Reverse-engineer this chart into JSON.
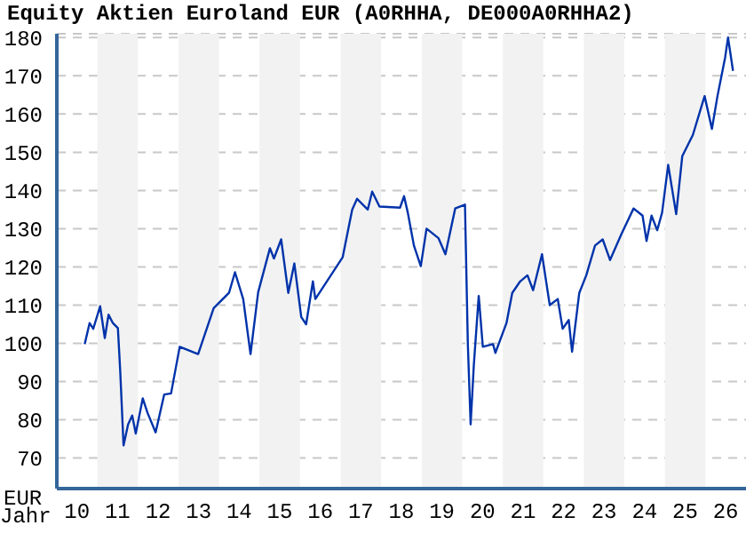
{
  "chart_data": {
    "type": "line",
    "title": "Equity Aktien Euroland EUR (A0RHHA, DE000A0RHHA2)",
    "xlabel": "Jahr",
    "ylabel": "EUR",
    "x": [
      "2010-09-09",
      "2010-10-23",
      "2010-11-25",
      "2011-01-26",
      "2011-03-09",
      "2011-04-12",
      "2011-05-21",
      "2011-07-05",
      "2011-07-26",
      "2011-08-25",
      "2011-10-05",
      "2011-11-11",
      "2011-12-13",
      "2012-02-14",
      "2012-03-27",
      "2012-06-09",
      "2012-08-25",
      "2012-10-26",
      "2013-01-12",
      "2013-06-27",
      "2013-11-14",
      "2014-04-01",
      "2014-05-25",
      "2014-08-07",
      "2014-10-12",
      "2014-12-20",
      "2015-04-05",
      "2015-05-11",
      "2015-07-15",
      "2015-09-17",
      "2015-11-11",
      "2016-01-12",
      "2016-02-25",
      "2016-04-26",
      "2016-05-18",
      "2017-01-19",
      "2017-04-15",
      "2017-05-29",
      "2017-09-02",
      "2017-10-12",
      "2017-12-17",
      "2018-06-20",
      "2018-07-26",
      "2018-08-29",
      "2018-10-23",
      "2018-12-24",
      "2019-02-14",
      "2019-06-02",
      "2019-08-03",
      "2019-10-30",
      "2020-01-26",
      "2020-02-21",
      "2020-03-17",
      "2020-04-15",
      "2020-05-29",
      "2020-07-05",
      "2020-10-05",
      "2020-10-26",
      "2021-02-03",
      "2021-03-27",
      "2021-06-06",
      "2021-08-11",
      "2021-10-01",
      "2021-12-20",
      "2022-02-28",
      "2022-05-11",
      "2022-06-24",
      "2022-08-18",
      "2022-09-17",
      "2022-11-21",
      "2023-01-23",
      "2023-04-12",
      "2023-06-20",
      "2023-08-25",
      "2023-12-09",
      "2024-03-24",
      "2024-06-13",
      "2024-07-19",
      "2024-09-02",
      "2024-10-23",
      "2024-12-06",
      "2025-01-30",
      "2025-04-12",
      "2025-06-06",
      "2025-09-09",
      "2025-12-24",
      "2026-02-28",
      "2026-04-19",
      "2026-06-27",
      "2026-07-23",
      "2026-09-06"
    ],
    "series": [
      {
        "color": "#0033aa",
        "values": [
          99.8,
          105.3,
          103.8,
          109.7,
          101.4,
          107.5,
          105.3,
          104,
          92.8,
          73.3,
          78.8,
          81.1,
          76.4,
          85.6,
          81.9,
          76.7,
          86.6,
          86.9,
          99.1,
          97.2,
          109.2,
          113.2,
          118.6,
          111.6,
          97.2,
          113.4,
          124.9,
          122.2,
          127.2,
          113.2,
          120.9,
          106.9,
          105,
          116.2,
          111.6,
          122.5,
          135,
          137.8,
          135,
          139.7,
          135.8,
          135.5,
          138.5,
          134.2,
          125.6,
          120.2,
          130,
          127.5,
          123.3,
          135.3,
          136.3,
          99.8,
          78.8,
          94.4,
          112.4,
          99.1,
          99.8,
          97.5,
          105.3,
          113.2,
          116.2,
          117.8,
          113.9,
          123.3,
          110,
          111.6,
          103.8,
          106.1,
          97.8,
          113.2,
          117.8,
          125.6,
          127.2,
          121.8,
          128.8,
          135.3,
          133.4,
          126.8,
          133.4,
          129.6,
          134.2,
          146.7,
          133.8,
          149,
          154.5,
          164.7,
          156.1,
          164.7,
          174.8,
          180,
          171.3
        ]
      }
    ],
    "xlim": [
      "2010-01-01",
      "2027-01-01"
    ],
    "xticks": [
      {
        "value": "2010-07-02",
        "label": "10"
      },
      {
        "value": "2011-07-02",
        "label": "11"
      },
      {
        "value": "2012-07-02",
        "label": "12"
      },
      {
        "value": "2013-07-02",
        "label": "13"
      },
      {
        "value": "2014-07-02",
        "label": "14"
      },
      {
        "value": "2015-07-02",
        "label": "15"
      },
      {
        "value": "2016-07-02",
        "label": "16"
      },
      {
        "value": "2017-07-02",
        "label": "17"
      },
      {
        "value": "2018-07-02",
        "label": "18"
      },
      {
        "value": "2019-07-02",
        "label": "19"
      },
      {
        "value": "2020-07-02",
        "label": "20"
      },
      {
        "value": "2021-07-02",
        "label": "21"
      },
      {
        "value": "2022-07-02",
        "label": "22"
      },
      {
        "value": "2023-07-02",
        "label": "23"
      },
      {
        "value": "2024-07-02",
        "label": "24"
      },
      {
        "value": "2025-07-02",
        "label": "25"
      },
      {
        "value": "2026-07-02",
        "label": "26"
      }
    ],
    "ylim": [
      62,
      181
    ],
    "yticks": [
      70,
      80,
      90,
      100,
      110,
      120,
      130,
      140,
      150,
      160,
      170,
      180
    ],
    "grid": "y",
    "legend": false,
    "marker": "none",
    "line_style": "solid",
    "bands": [
      {
        "axis": "x",
        "from": "2011-01-01",
        "to": "2012-01-01",
        "color": "#f2f2f2"
      },
      {
        "axis": "x",
        "from": "2013-01-01",
        "to": "2014-01-01",
        "color": "#f2f2f2"
      },
      {
        "axis": "x",
        "from": "2015-01-01",
        "to": "2016-01-01",
        "color": "#f2f2f2"
      },
      {
        "axis": "x",
        "from": "2017-01-01",
        "to": "2018-01-01",
        "color": "#f2f2f2"
      },
      {
        "axis": "x",
        "from": "2019-01-01",
        "to": "2020-01-01",
        "color": "#f2f2f2"
      },
      {
        "axis": "x",
        "from": "2021-01-01",
        "to": "2022-01-01",
        "color": "#f2f2f2"
      },
      {
        "axis": "x",
        "from": "2023-01-01",
        "to": "2024-01-01",
        "color": "#f2f2f2"
      },
      {
        "axis": "x",
        "from": "2025-01-01",
        "to": "2026-01-01",
        "color": "#f2f2f2"
      }
    ]
  }
}
